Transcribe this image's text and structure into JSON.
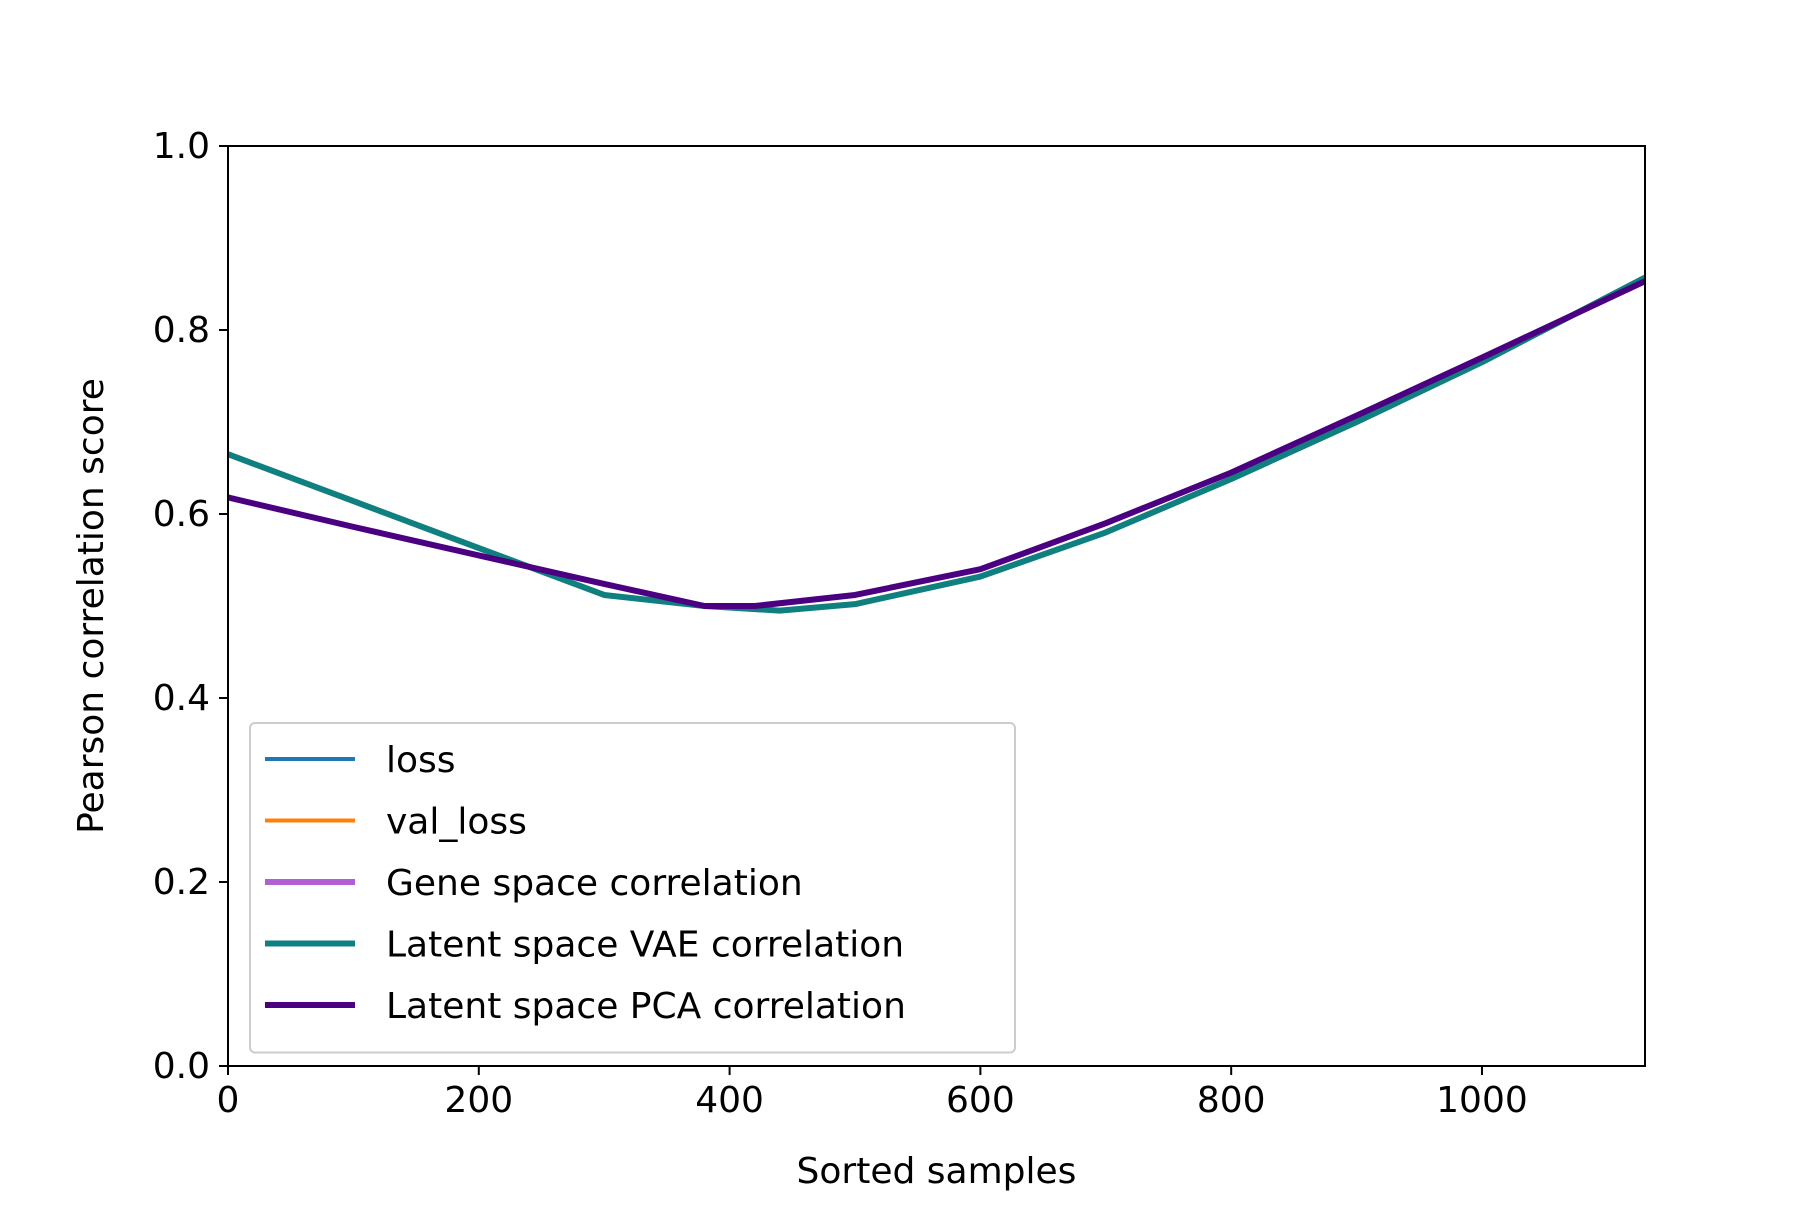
{
  "chart_data": {
    "type": "line",
    "title": "",
    "xlabel": "Sorted samples",
    "ylabel": "Pearson correlation score",
    "xlim": [
      0,
      1130
    ],
    "ylim": [
      0.0,
      1.0
    ],
    "xticks": [
      0,
      200,
      400,
      600,
      800,
      1000
    ],
    "xtick_labels": [
      "0",
      "200",
      "400",
      "600",
      "800",
      "1000"
    ],
    "yticks": [
      0.0,
      0.2,
      0.4,
      0.6,
      0.8,
      1.0
    ],
    "ytick_labels": [
      "0.0",
      "0.2",
      "0.4",
      "0.6",
      "0.8",
      "1.0"
    ],
    "grid": false,
    "legend_position": "lower-left",
    "series": [
      {
        "name": "loss",
        "color": "#1f77b4",
        "line_weight": "thin",
        "x": [],
        "y": []
      },
      {
        "name": "val_loss",
        "color": "#ff7f0e",
        "line_weight": "thin",
        "x": [],
        "y": []
      },
      {
        "name": "Gene space correlation",
        "color": "#b05fd6",
        "line_weight": "thick",
        "x": [],
        "y": []
      },
      {
        "name": "Latent space VAE correlation",
        "color": "#0f7f7f",
        "line_weight": "thick",
        "x": [
          0,
          100,
          200,
          300,
          380,
          440,
          500,
          600,
          700,
          800,
          900,
          1000,
          1130
        ],
        "y": [
          0.665,
          0.614,
          0.563,
          0.512,
          0.5,
          0.495,
          0.502,
          0.532,
          0.58,
          0.638,
          0.7,
          0.765,
          0.857
        ]
      },
      {
        "name": "Latent space PCA correlation",
        "color": "#4b0082",
        "line_weight": "thick",
        "x": [
          0,
          100,
          200,
          300,
          380,
          420,
          500,
          600,
          700,
          800,
          900,
          1000,
          1130
        ],
        "y": [
          0.618,
          0.586,
          0.555,
          0.524,
          0.5,
          0.5,
          0.512,
          0.54,
          0.59,
          0.645,
          0.707,
          0.77,
          0.853
        ]
      }
    ]
  }
}
